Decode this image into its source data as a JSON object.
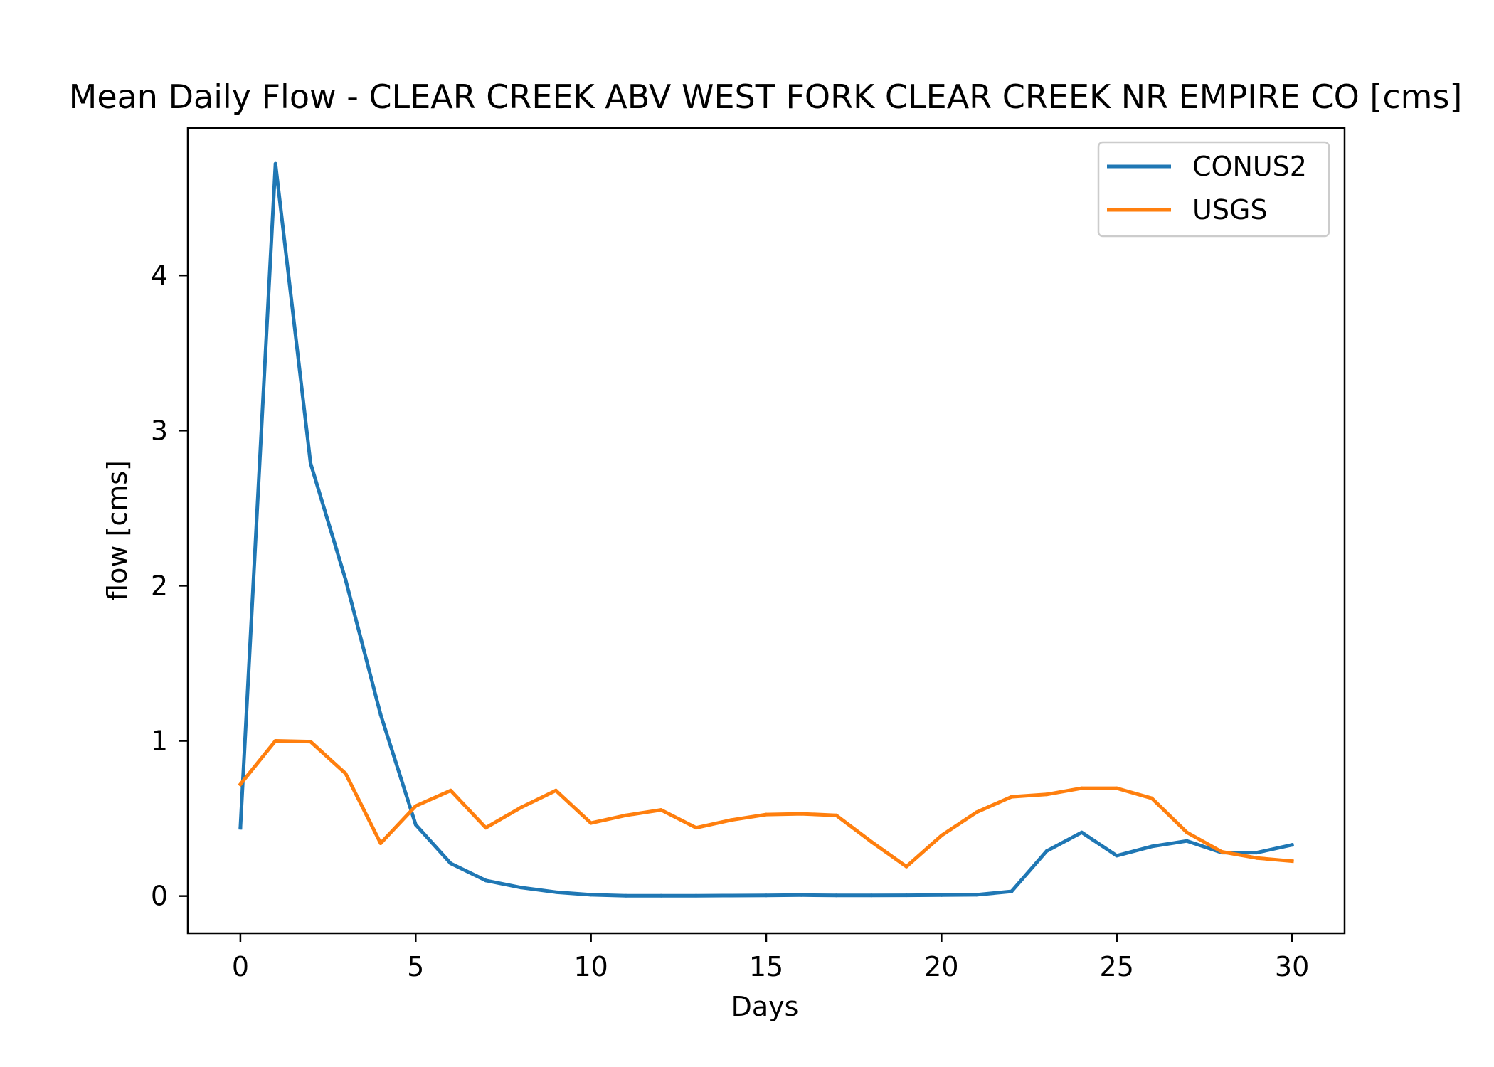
{
  "chart_data": {
    "type": "line",
    "title": "Mean Daily Flow - CLEAR CREEK ABV WEST FORK CLEAR CREEK NR EMPIRE CO [cms]",
    "xlabel": "Days",
    "ylabel": "flow [cms]",
    "xlim": [
      -1.5,
      31.5
    ],
    "ylim": [
      -0.24,
      4.95
    ],
    "xticks": [
      0,
      5,
      10,
      15,
      20,
      25,
      30
    ],
    "yticks": [
      0,
      1,
      2,
      3,
      4
    ],
    "grid": false,
    "legend_position": "upper right",
    "x": [
      0,
      1,
      2,
      3,
      4,
      5,
      6,
      7,
      8,
      9,
      10,
      11,
      12,
      13,
      14,
      15,
      16,
      17,
      18,
      19,
      20,
      21,
      22,
      23,
      24,
      25,
      26,
      27,
      28,
      29,
      30
    ],
    "series": [
      {
        "name": "CONUS2",
        "color": "#1f77b4",
        "values": [
          0.44,
          4.72,
          2.79,
          2.04,
          1.17,
          0.46,
          0.21,
          0.1,
          0.055,
          0.025,
          0.008,
          0.002,
          0.002,
          0.002,
          0.003,
          0.004,
          0.006,
          0.004,
          0.004,
          0.005,
          0.006,
          0.008,
          0.03,
          0.29,
          0.41,
          0.26,
          0.32,
          0.355,
          0.28,
          0.28,
          0.33
        ]
      },
      {
        "name": "USGS",
        "color": "#ff7f0e",
        "values": [
          0.72,
          1.0,
          0.995,
          0.79,
          0.34,
          0.58,
          0.68,
          0.44,
          0.57,
          0.68,
          0.47,
          0.52,
          0.555,
          0.44,
          0.49,
          0.525,
          0.53,
          0.52,
          0.35,
          0.19,
          0.39,
          0.54,
          0.64,
          0.655,
          0.695,
          0.695,
          0.63,
          0.41,
          0.285,
          0.245,
          0.225
        ]
      }
    ]
  }
}
